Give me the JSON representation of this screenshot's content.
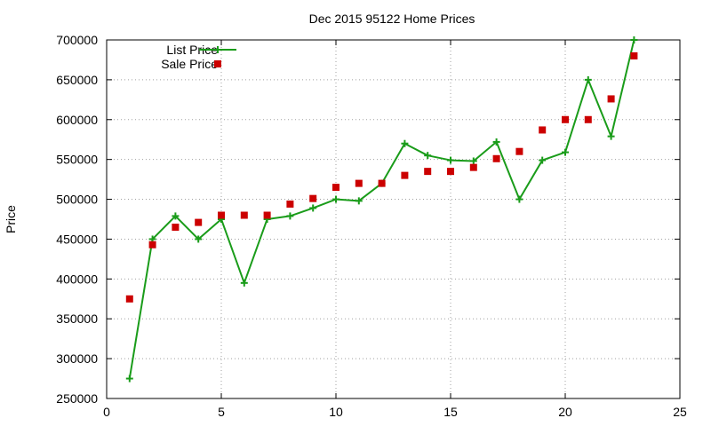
{
  "chart_data": {
    "type": "scatter",
    "title": "Dec 2015 95122 Home Prices",
    "xlabel": "",
    "ylabel": "Price",
    "xlim": [
      0,
      25
    ],
    "ylim": [
      250000,
      700000
    ],
    "xticks": [
      0,
      5,
      10,
      15,
      20,
      25
    ],
    "yticks": [
      250000,
      300000,
      350000,
      400000,
      450000,
      500000,
      550000,
      600000,
      650000,
      700000
    ],
    "grid": true,
    "legend_position": "top-left",
    "series": [
      {
        "name": "List Price",
        "style": "line-with-plus-markers",
        "color": "#1a9c1a",
        "points": [
          [
            1,
            275000
          ],
          [
            2,
            450000
          ],
          [
            3,
            479000
          ],
          [
            4,
            450000
          ],
          [
            5,
            475000
          ],
          [
            6,
            395000
          ],
          [
            7,
            475000
          ],
          [
            8,
            479000
          ],
          [
            9,
            489000
          ],
          [
            10,
            500000
          ],
          [
            11,
            498000
          ],
          [
            12,
            520000
          ],
          [
            13,
            570000
          ],
          [
            14,
            555000
          ],
          [
            15,
            549000
          ],
          [
            16,
            548000
          ],
          [
            17,
            572000
          ],
          [
            18,
            500000
          ],
          [
            19,
            549000
          ],
          [
            20,
            559000
          ],
          [
            21,
            650000
          ],
          [
            22,
            579000
          ],
          [
            23,
            700000
          ]
        ]
      },
      {
        "name": "Sale Price",
        "style": "square-markers",
        "color": "#cc0000",
        "points": [
          [
            1,
            375000
          ],
          [
            2,
            443000
          ],
          [
            3,
            465000
          ],
          [
            4,
            471000
          ],
          [
            5,
            480000
          ],
          [
            6,
            480000
          ],
          [
            7,
            480000
          ],
          [
            8,
            494000
          ],
          [
            9,
            501000
          ],
          [
            10,
            515000
          ],
          [
            11,
            520000
          ],
          [
            12,
            520000
          ],
          [
            13,
            530000
          ],
          [
            14,
            535000
          ],
          [
            15,
            535000
          ],
          [
            16,
            540000
          ],
          [
            17,
            551000
          ],
          [
            18,
            560000
          ],
          [
            19,
            587000
          ],
          [
            20,
            600000
          ],
          [
            21,
            600000
          ],
          [
            22,
            626000
          ],
          [
            23,
            680000
          ]
        ]
      }
    ]
  }
}
